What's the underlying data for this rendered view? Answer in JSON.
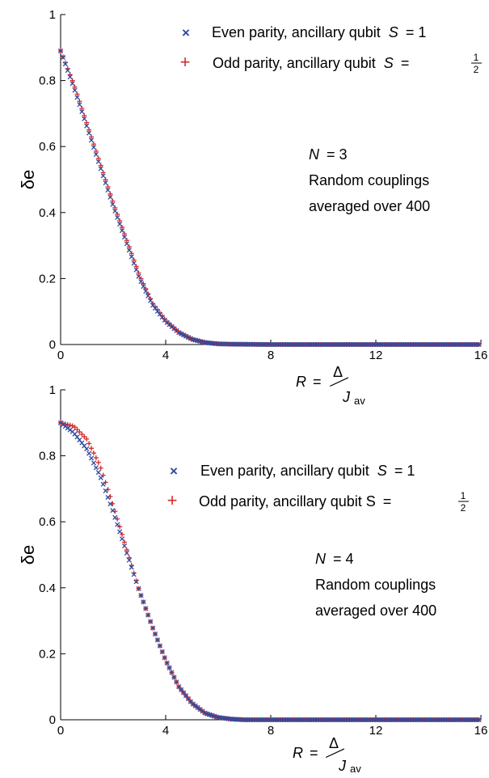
{
  "chart_data": [
    {
      "type": "scatter",
      "xlim": [
        0,
        16
      ],
      "ylim": [
        0,
        1
      ],
      "xticks": [
        "0",
        "4",
        "8",
        "12",
        "16"
      ],
      "yticks": [
        "0",
        "0.2",
        "0.4",
        "0.6",
        "0.8",
        "1"
      ],
      "ylabel": "δe",
      "xlabel": {
        "lhs": "R =",
        "num": "Δ",
        "den_var": "J",
        "den_sub": "av"
      },
      "legend_position": "top-right",
      "legend": [
        {
          "marker": "x",
          "color": "#2e4a9e",
          "text": "Even parity, ancillary qubit",
          "var": "S",
          "eq": "= 1"
        },
        {
          "marker": "+",
          "color": "#d62a2a",
          "text": "Odd parity, ancillary qubit",
          "var": "S",
          "eq": "=",
          "frac_num": "1",
          "frac_den": "2"
        }
      ],
      "annotation": {
        "var": "N",
        "eq": "= 3",
        "line2": "Random couplings",
        "line3": "averaged over 400"
      },
      "series": [
        {
          "name": "Even parity, ancillary qubit S = 1",
          "marker": "x",
          "color": "#2e4a9e",
          "x": [
            0.0,
            0.5,
            1.0,
            1.5,
            2.0,
            2.5,
            3.0,
            3.5,
            4.0,
            4.5,
            5.0,
            5.5,
            6.0,
            6.5,
            8.0,
            10.0,
            12.0,
            14.0,
            16.0
          ],
          "y": [
            0.89,
            0.78,
            0.66,
            0.54,
            0.42,
            0.31,
            0.2,
            0.12,
            0.07,
            0.036,
            0.016,
            0.006,
            0.002,
            0.001,
            0.0,
            0.0,
            0.0,
            0.0,
            0.0
          ]
        },
        {
          "name": "Odd parity, ancillary qubit S = 1/2",
          "marker": "+",
          "color": "#d62a2a",
          "x": [
            0.0,
            0.5,
            1.0,
            1.5,
            2.0,
            2.5,
            3.0,
            3.5,
            4.0,
            4.5,
            5.0,
            5.5,
            6.0,
            6.5,
            8.0,
            10.0,
            12.0,
            14.0,
            16.0
          ],
          "y": [
            0.89,
            0.79,
            0.67,
            0.55,
            0.43,
            0.32,
            0.21,
            0.125,
            0.072,
            0.037,
            0.016,
            0.006,
            0.002,
            0.001,
            0.0,
            0.0,
            0.0,
            0.0,
            0.0
          ]
        }
      ]
    },
    {
      "type": "scatter",
      "xlim": [
        0,
        16
      ],
      "ylim": [
        0,
        1
      ],
      "xticks": [
        "0",
        "4",
        "8",
        "12",
        "16"
      ],
      "yticks": [
        "0",
        "0.2",
        "0.4",
        "0.6",
        "0.8",
        "1"
      ],
      "ylabel": "δe",
      "xlabel": {
        "lhs": "R =",
        "num": "Δ",
        "den_var": "J",
        "den_sub": "av"
      },
      "legend_position": "top-right",
      "legend": [
        {
          "marker": "x",
          "color": "#2e4a9e",
          "text": "Even parity, ancillary qubit",
          "var": "S",
          "eq": "= 1"
        },
        {
          "marker": "+",
          "color": "#d62a2a",
          "text": "Odd parity, ancillary qubit S",
          "var": "",
          "eq": "=",
          "frac_num": "1",
          "frac_den": "2"
        }
      ],
      "annotation": {
        "var": "N",
        "eq": "= 4",
        "line2": "Random couplings",
        "line3": "averaged over 400"
      },
      "series": [
        {
          "name": "Even parity, ancillary qubit S = 1",
          "marker": "x",
          "color": "#2e4a9e",
          "x": [
            0.0,
            0.5,
            1.0,
            1.5,
            2.0,
            2.5,
            3.0,
            3.5,
            4.0,
            4.5,
            5.0,
            5.5,
            6.0,
            6.5,
            7.0,
            8.0,
            10.0,
            12.0,
            14.0,
            16.0
          ],
          "y": [
            0.9,
            0.87,
            0.82,
            0.74,
            0.63,
            0.51,
            0.39,
            0.28,
            0.18,
            0.1,
            0.05,
            0.02,
            0.007,
            0.002,
            0.0,
            0.0,
            0.0,
            0.0,
            0.0,
            0.0
          ]
        },
        {
          "name": "Odd parity, ancillary qubit S = 1/2",
          "marker": "+",
          "color": "#d62a2a",
          "x": [
            0.0,
            0.5,
            1.0,
            1.5,
            2.0,
            2.5,
            3.0,
            3.5,
            4.0,
            4.5,
            5.0,
            5.5,
            6.0,
            6.5,
            7.0,
            8.0,
            10.0,
            12.0,
            14.0,
            16.0
          ],
          "y": [
            0.9,
            0.89,
            0.85,
            0.77,
            0.65,
            0.52,
            0.39,
            0.28,
            0.18,
            0.1,
            0.05,
            0.02,
            0.007,
            0.002,
            0.0,
            0.0,
            0.0,
            0.0,
            0.0,
            0.0
          ]
        }
      ]
    }
  ]
}
